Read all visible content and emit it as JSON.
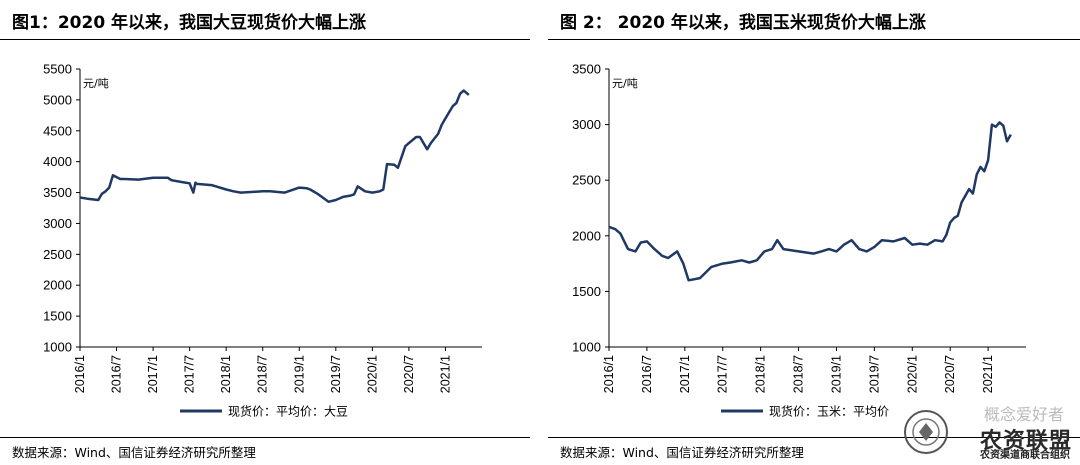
{
  "left": {
    "title": "图1：2020 年以来，我国大豆现货价大幅上涨",
    "source": "数据来源：Wind、国信证券经济研究所整理"
  },
  "right": {
    "title": "图 2：  2020 年以来，我国玉米现货价大幅上涨",
    "source": "数据来源：Wind、国信证券经济研究所整理"
  },
  "watermark": {
    "wechat_text": "概念爱好者",
    "logo_text": "农资联盟",
    "logo_sub": "农资渠道商联合组织"
  },
  "colors": {
    "line": "#1f3864",
    "axis": "#000000"
  },
  "chart_data": [
    {
      "type": "line",
      "unit_label": "元/吨",
      "ylim": [
        1000,
        5500
      ],
      "yticks": [
        "1000",
        "1500",
        "2000",
        "2500",
        "3000",
        "3500",
        "4000",
        "4500",
        "5000",
        "5500"
      ],
      "xticks": [
        "2016/1",
        "2016/7",
        "2017/1",
        "2017/7",
        "2018/1",
        "2018/7",
        "2019/1",
        "2019/7",
        "2020/1",
        "2020/7",
        "2021/1"
      ],
      "xrange": [
        2016.0,
        2021.5
      ],
      "legend": "现货价：平均价：大豆",
      "series": [
        {
          "name": "现货价：平均价：大豆",
          "x": [
            2016.0,
            2016.1,
            2016.25,
            2016.3,
            2016.35,
            2016.4,
            2016.45,
            2016.5,
            2016.55,
            2016.6,
            2016.8,
            2017.0,
            2017.2,
            2017.25,
            2017.4,
            2017.5,
            2017.55,
            2017.58,
            2017.6,
            2017.8,
            2018.0,
            2018.1,
            2018.2,
            2018.5,
            2018.6,
            2018.8,
            2019.0,
            2019.1,
            2019.15,
            2019.25,
            2019.4,
            2019.5,
            2019.6,
            2019.7,
            2019.75,
            2019.8,
            2019.9,
            2020.0,
            2020.1,
            2020.15,
            2020.2,
            2020.3,
            2020.35,
            2020.45,
            2020.5,
            2020.6,
            2020.65,
            2020.75,
            2020.8,
            2020.9,
            2020.95,
            2021.05,
            2021.1,
            2021.15,
            2021.2,
            2021.25,
            2021.3,
            2021.32
          ],
          "y": [
            3420,
            3400,
            3380,
            3480,
            3520,
            3580,
            3780,
            3750,
            3720,
            3720,
            3710,
            3740,
            3740,
            3700,
            3670,
            3650,
            3500,
            3660,
            3640,
            3620,
            3550,
            3520,
            3500,
            3520,
            3520,
            3500,
            3580,
            3570,
            3550,
            3480,
            3350,
            3380,
            3430,
            3450,
            3470,
            3600,
            3520,
            3500,
            3520,
            3550,
            3960,
            3950,
            3900,
            4250,
            4300,
            4400,
            4400,
            4200,
            4300,
            4450,
            4600,
            4800,
            4900,
            4950,
            5100,
            5150,
            5100,
            5080
          ]
        }
      ]
    },
    {
      "type": "line",
      "unit_label": "元/吨",
      "ylim": [
        1000,
        3500
      ],
      "yticks": [
        "1000",
        "1500",
        "2000",
        "2500",
        "3000",
        "3500"
      ],
      "xticks": [
        "2016/1",
        "2016/7",
        "2017/1",
        "2017/7",
        "2018/1",
        "2018/7",
        "2019/1",
        "2019/7",
        "2020/1",
        "2020/7",
        "2021/1"
      ],
      "xrange": [
        2016.0,
        2021.5
      ],
      "legend": "现货价：玉米：平均价",
      "series": [
        {
          "name": "现货价：玉米：平均价",
          "x": [
            2016.0,
            2016.08,
            2016.15,
            2016.25,
            2016.35,
            2016.42,
            2016.5,
            2016.6,
            2016.7,
            2016.78,
            2016.9,
            2016.98,
            2017.05,
            2017.2,
            2017.35,
            2017.5,
            2017.6,
            2017.75,
            2017.85,
            2017.95,
            2018.05,
            2018.15,
            2018.22,
            2018.3,
            2018.5,
            2018.7,
            2018.8,
            2018.9,
            2019.0,
            2019.1,
            2019.2,
            2019.3,
            2019.4,
            2019.5,
            2019.6,
            2019.75,
            2019.9,
            2020.0,
            2020.1,
            2020.2,
            2020.3,
            2020.4,
            2020.45,
            2020.5,
            2020.55,
            2020.6,
            2020.65,
            2020.75,
            2020.8,
            2020.85,
            2020.9,
            2020.95,
            2021.0,
            2021.05,
            2021.1,
            2021.15,
            2021.2,
            2021.25,
            2021.3
          ],
          "y": [
            2080,
            2060,
            2020,
            1880,
            1860,
            1940,
            1950,
            1880,
            1820,
            1800,
            1860,
            1750,
            1600,
            1620,
            1720,
            1750,
            1760,
            1780,
            1760,
            1780,
            1860,
            1880,
            1960,
            1880,
            1860,
            1840,
            1860,
            1880,
            1860,
            1920,
            1960,
            1880,
            1860,
            1900,
            1960,
            1950,
            1980,
            1920,
            1930,
            1920,
            1960,
            1950,
            2010,
            2120,
            2160,
            2180,
            2300,
            2420,
            2380,
            2550,
            2620,
            2580,
            2680,
            3000,
            2980,
            3020,
            2990,
            2850,
            2910
          ]
        }
      ]
    }
  ]
}
